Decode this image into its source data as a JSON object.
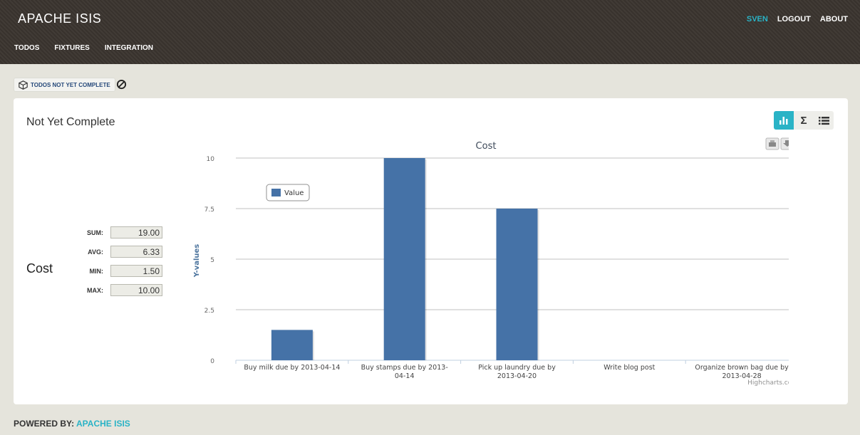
{
  "header": {
    "brand": "APACHE ISIS",
    "user": "SVEN",
    "logout": "LOGOUT",
    "about": "ABOUT",
    "menu": [
      "TODOS",
      "FIXTURES",
      "INTEGRATION"
    ]
  },
  "breadcrumb": {
    "label": "TODOS NOT YET COMPLETE"
  },
  "panel": {
    "title": "Not Yet Complete",
    "view_buttons": [
      "chart-icon",
      "sigma-icon",
      "list-icon"
    ]
  },
  "stats": {
    "name": "Cost",
    "rows": [
      {
        "label": "SUM:",
        "value": "19.00"
      },
      {
        "label": "AVG:",
        "value": "6.33"
      },
      {
        "label": "MIN:",
        "value": "1.50"
      },
      {
        "label": "MAX:",
        "value": "10.00"
      }
    ]
  },
  "chart_data": {
    "type": "bar",
    "title": "Cost",
    "xlabel": "",
    "ylabel": "Y-values",
    "ylim": [
      0,
      10
    ],
    "yticks": [
      "0",
      "2.5",
      "5",
      "7.5",
      "10"
    ],
    "categories": [
      [
        "Buy milk due by 2013-04-14"
      ],
      [
        "Buy stamps due by 2013-",
        "04-14"
      ],
      [
        "Pick up laundry due by",
        "2013-04-20"
      ],
      [
        "Write blog post"
      ],
      [
        "Organize brown bag due by",
        "2013-04-28"
      ]
    ],
    "series": [
      {
        "name": "Value",
        "values": [
          1.5,
          10,
          7.5,
          0,
          0
        ]
      }
    ],
    "legend": "top-left",
    "credits": "Highcharts.com",
    "color": "#4572a7"
  },
  "footer": {
    "prefix": "POWERED BY:",
    "link": "APACHE ISIS"
  }
}
